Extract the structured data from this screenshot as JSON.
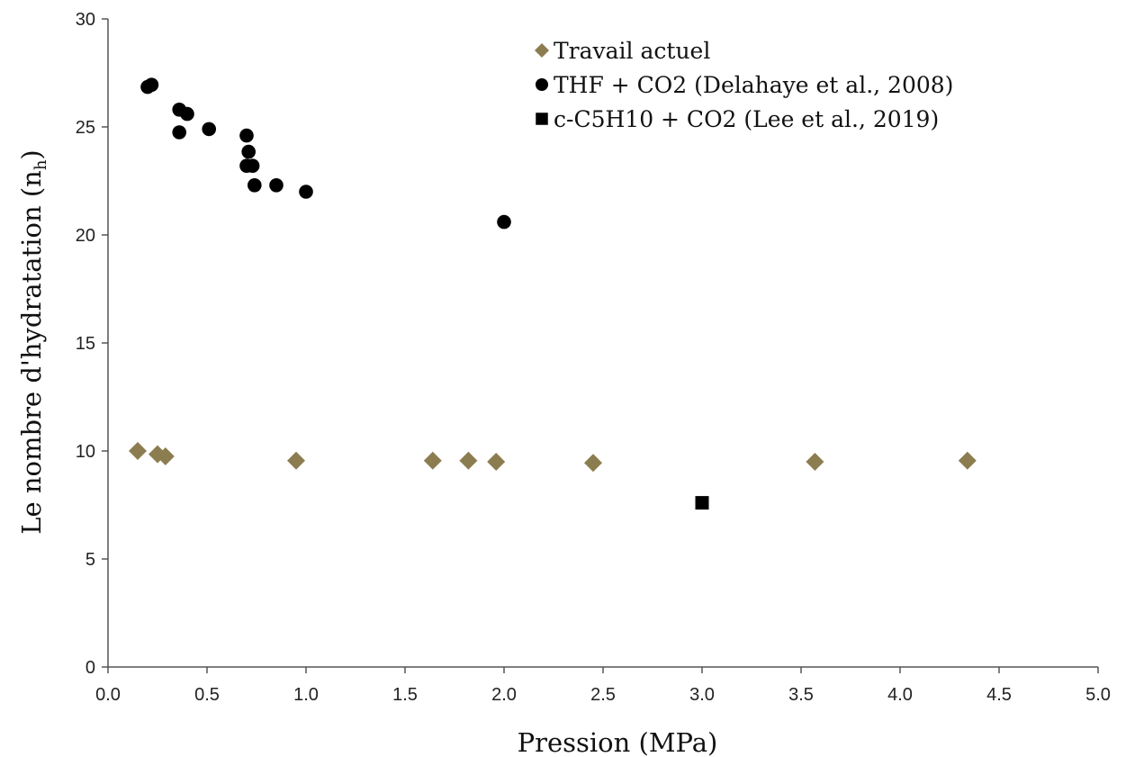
{
  "chart_data": {
    "type": "scatter",
    "xlabel": "Pression (MPa)",
    "ylabel_main": "Le nombre d'hydratation (n",
    "ylabel_sub": "h",
    "ylabel_close": ")",
    "xlim": [
      0,
      5
    ],
    "ylim": [
      0,
      30
    ],
    "xticks": [
      "0.0",
      "0.5",
      "1.0",
      "1.5",
      "2.0",
      "2.5",
      "3.0",
      "3.5",
      "4.0",
      "4.5",
      "5.0"
    ],
    "yticks": [
      "0",
      "5",
      "10",
      "15",
      "20",
      "25",
      "30"
    ],
    "grid": false,
    "legend_position": "top-right",
    "series": [
      {
        "name": "Travail actuel",
        "marker": "diamond",
        "color": "#8c7d50",
        "points": [
          [
            0.15,
            10.0
          ],
          [
            0.25,
            9.85
          ],
          [
            0.29,
            9.75
          ],
          [
            0.95,
            9.55
          ],
          [
            1.64,
            9.55
          ],
          [
            1.82,
            9.55
          ],
          [
            1.96,
            9.5
          ],
          [
            2.45,
            9.45
          ],
          [
            3.57,
            9.5
          ],
          [
            4.34,
            9.55
          ]
        ]
      },
      {
        "name": "THF + CO2 (Delahaye et al., 2008)",
        "marker": "circle",
        "color": "#000000",
        "points": [
          [
            0.2,
            26.85
          ],
          [
            0.22,
            26.95
          ],
          [
            0.36,
            25.8
          ],
          [
            0.4,
            25.6
          ],
          [
            0.36,
            24.75
          ],
          [
            0.51,
            24.9
          ],
          [
            0.7,
            24.6
          ],
          [
            0.71,
            23.85
          ],
          [
            0.7,
            23.2
          ],
          [
            0.73,
            23.2
          ],
          [
            0.74,
            22.3
          ],
          [
            0.85,
            22.3
          ],
          [
            1.0,
            22.0
          ],
          [
            2.0,
            20.6
          ]
        ]
      },
      {
        "name": "c-C5H10 + CO2 (Lee et al., 2019)",
        "marker": "square",
        "color": "#000000",
        "points": [
          [
            3.0,
            7.6
          ]
        ]
      }
    ]
  }
}
